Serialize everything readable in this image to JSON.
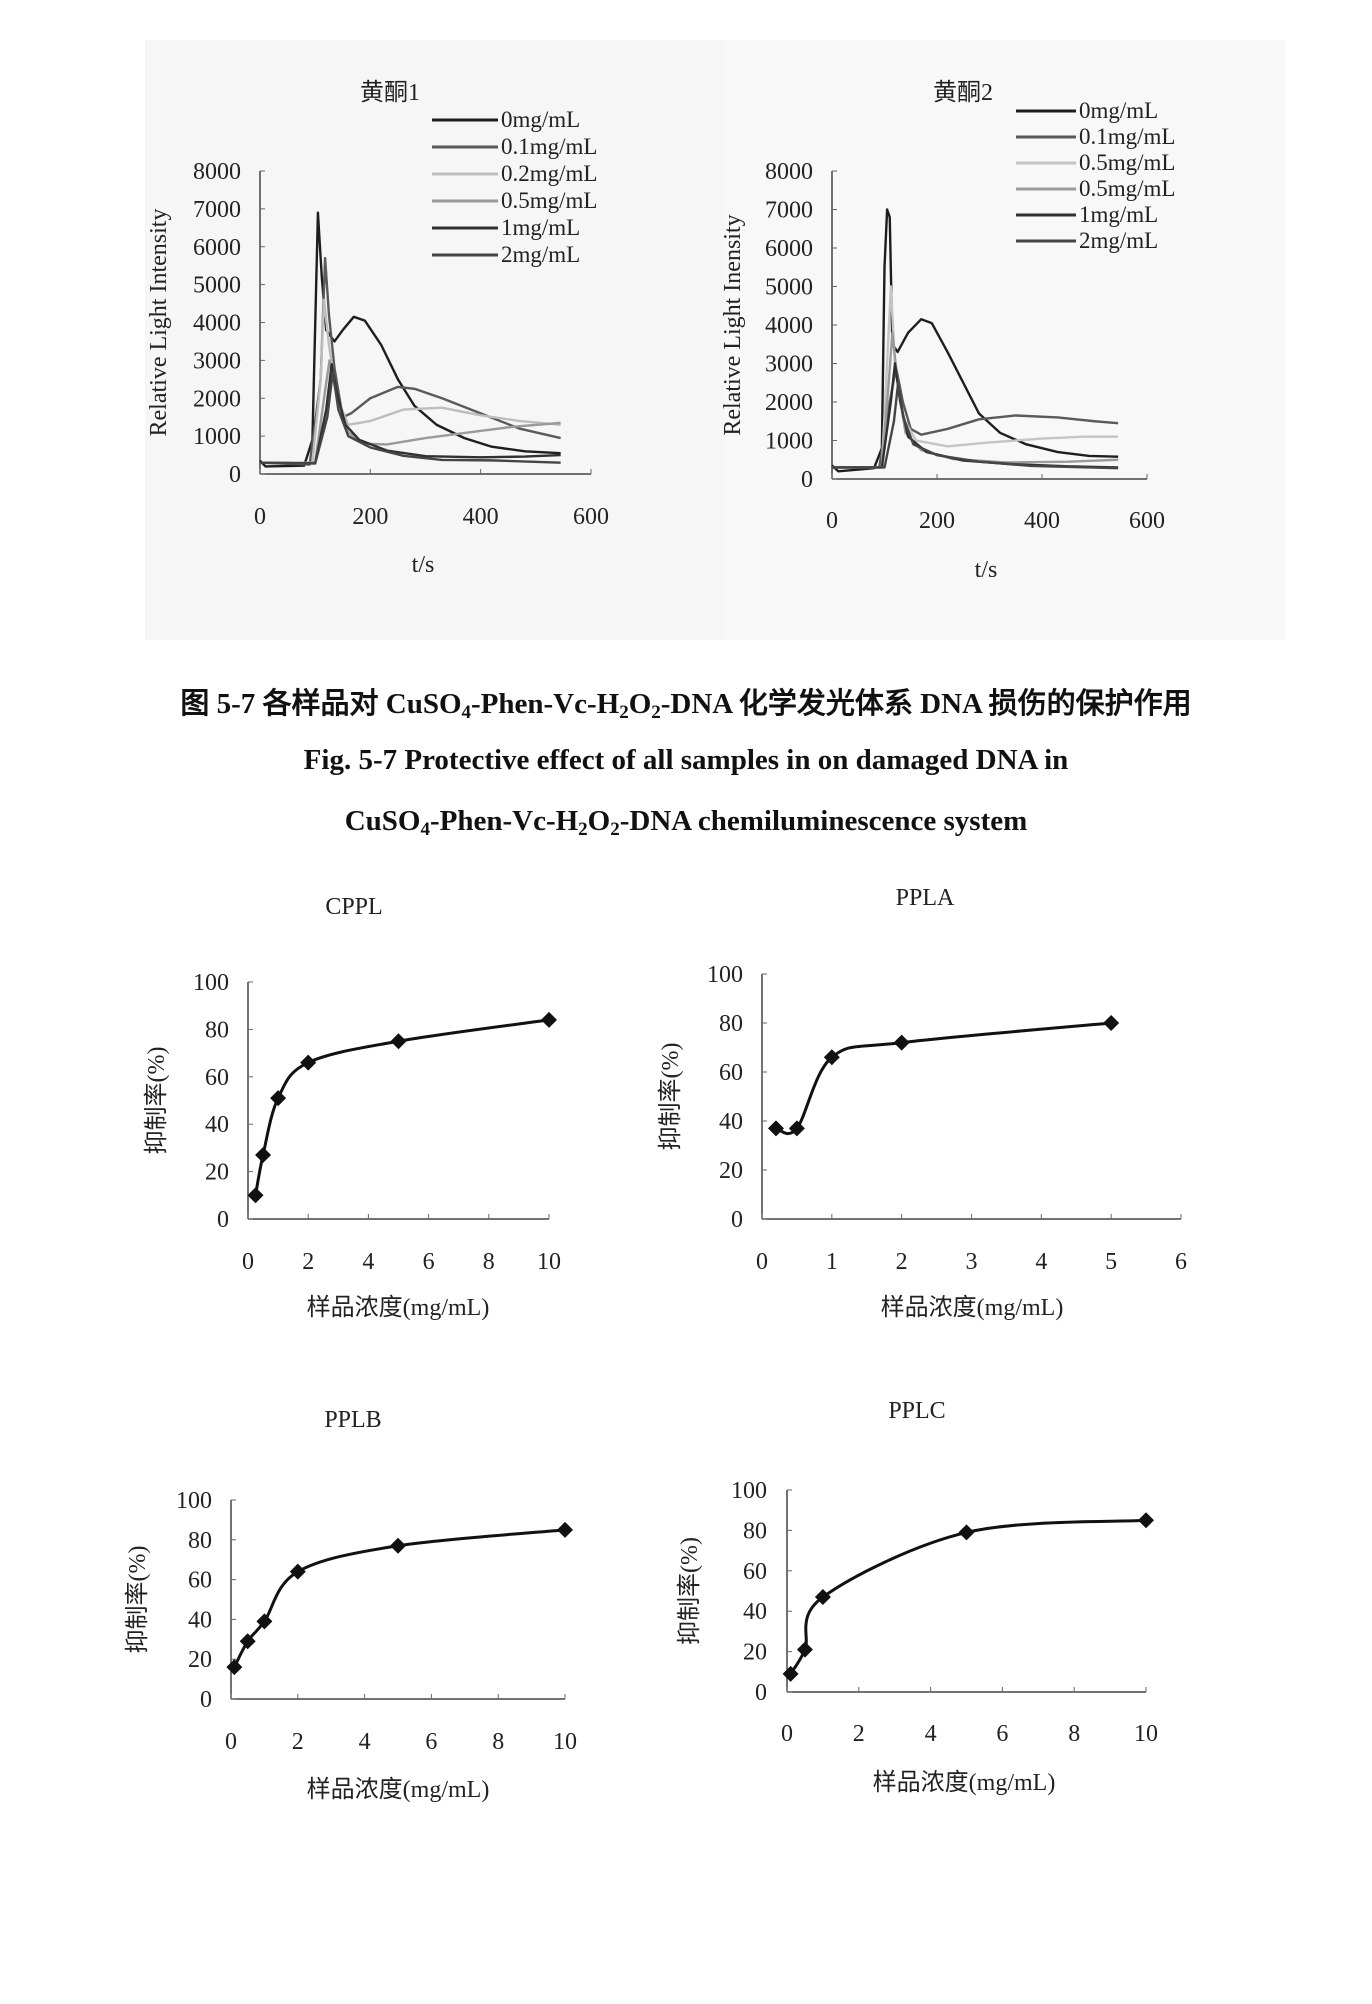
{
  "caption": {
    "line1": [
      "图 5-7   各样品对 CuSO",
      "4",
      "-Phen-Vc-H",
      "2",
      "O",
      "2",
      "-DNA 化学发光体系 DNA 损伤的保护作用"
    ],
    "line2": "Fig. 5-7 Protective effect of all samples in on damaged DNA in",
    "line3": [
      "CuSO",
      "4",
      "-Phen-Vc-H",
      "2",
      "O",
      "2",
      "-DNA chemiluminescence system"
    ]
  },
  "chart_data": [
    {
      "type": "line",
      "title": "黄酮1",
      "xlabel": "t/s",
      "ylabel": "Relative Light Intensity",
      "xlim": [
        0,
        600
      ],
      "ylim": [
        0,
        8000
      ],
      "xticks": [
        0,
        200,
        400,
        600
      ],
      "yticks": [
        0,
        1000,
        2000,
        3000,
        4000,
        5000,
        6000,
        7000,
        8000
      ],
      "legend": "top-right",
      "series": [
        {
          "name": "0mg/mL",
          "color": "#1e1e1e",
          "points": [
            [
              0,
              350
            ],
            [
              10,
              200
            ],
            [
              80,
              220
            ],
            [
              95,
              900
            ],
            [
              105,
              6900
            ],
            [
              112,
              5200
            ],
            [
              120,
              3800
            ],
            [
              135,
              3500
            ],
            [
              150,
              3800
            ],
            [
              170,
              4150
            ],
            [
              190,
              4050
            ],
            [
              220,
              3400
            ],
            [
              250,
              2500
            ],
            [
              280,
              1800
            ],
            [
              320,
              1300
            ],
            [
              370,
              950
            ],
            [
              420,
              720
            ],
            [
              480,
              600
            ],
            [
              545,
              550
            ]
          ]
        },
        {
          "name": "0.1mg/mL",
          "color": "#5a5a5a",
          "points": [
            [
              0,
              300
            ],
            [
              90,
              250
            ],
            [
              110,
              2500
            ],
            [
              118,
              5700
            ],
            [
              125,
              4200
            ],
            [
              135,
              2800
            ],
            [
              150,
              1500
            ],
            [
              165,
              1600
            ],
            [
              200,
              2000
            ],
            [
              250,
              2300
            ],
            [
              280,
              2250
            ],
            [
              330,
              2000
            ],
            [
              400,
              1600
            ],
            [
              470,
              1200
            ],
            [
              545,
              950
            ]
          ]
        },
        {
          "name": "0.2mg/mL",
          "color": "#bdbdbd",
          "points": [
            [
              0,
              300
            ],
            [
              95,
              300
            ],
            [
              110,
              2500
            ],
            [
              116,
              4600
            ],
            [
              125,
              3400
            ],
            [
              140,
              2000
            ],
            [
              160,
              1300
            ],
            [
              200,
              1400
            ],
            [
              260,
              1700
            ],
            [
              330,
              1750
            ],
            [
              400,
              1550
            ],
            [
              470,
              1400
            ],
            [
              545,
              1300
            ]
          ]
        },
        {
          "name": "0.5mg/mL",
          "color": "#9a9a9a",
          "points": [
            [
              0,
              300
            ],
            [
              100,
              300
            ],
            [
              118,
              2200
            ],
            [
              126,
              3000
            ],
            [
              140,
              2000
            ],
            [
              160,
              1100
            ],
            [
              190,
              800
            ],
            [
              230,
              780
            ],
            [
              300,
              950
            ],
            [
              380,
              1100
            ],
            [
              460,
              1250
            ],
            [
              545,
              1350
            ]
          ]
        },
        {
          "name": "1mg/mL",
          "color": "#303030",
          "points": [
            [
              0,
              300
            ],
            [
              100,
              280
            ],
            [
              120,
              1700
            ],
            [
              130,
              2900
            ],
            [
              140,
              2100
            ],
            [
              155,
              1300
            ],
            [
              180,
              900
            ],
            [
              230,
              620
            ],
            [
              300,
              470
            ],
            [
              400,
              440
            ],
            [
              480,
              460
            ],
            [
              545,
              500
            ]
          ]
        },
        {
          "name": "2mg/mL",
          "color": "#454545",
          "points": [
            [
              0,
              300
            ],
            [
              100,
              280
            ],
            [
              122,
              1500
            ],
            [
              132,
              2700
            ],
            [
              142,
              1700
            ],
            [
              160,
              1000
            ],
            [
              200,
              700
            ],
            [
              260,
              480
            ],
            [
              330,
              370
            ],
            [
              420,
              360
            ],
            [
              545,
              300
            ]
          ]
        }
      ]
    },
    {
      "type": "line",
      "title": "黄酮2",
      "xlabel": "t/s",
      "ylabel": "Relative Light Inensity",
      "xlim": [
        0,
        600
      ],
      "ylim": [
        0,
        8000
      ],
      "xticks": [
        0,
        200,
        400,
        600
      ],
      "yticks": [
        0,
        1000,
        2000,
        3000,
        4000,
        5000,
        6000,
        7000,
        8000
      ],
      "legend": "top-right",
      "series": [
        {
          "name": "0mg/mL",
          "color": "#1e1e1e",
          "points": [
            [
              0,
              350
            ],
            [
              12,
              200
            ],
            [
              80,
              280
            ],
            [
              95,
              800
            ],
            [
              100,
              5500
            ],
            [
              105,
              7000
            ],
            [
              110,
              6800
            ],
            [
              115,
              3500
            ],
            [
              125,
              3300
            ],
            [
              145,
              3800
            ],
            [
              170,
              4150
            ],
            [
              190,
              4050
            ],
            [
              220,
              3300
            ],
            [
              250,
              2500
            ],
            [
              280,
              1700
            ],
            [
              320,
              1200
            ],
            [
              370,
              900
            ],
            [
              430,
              700
            ],
            [
              490,
              600
            ],
            [
              545,
              580
            ]
          ]
        },
        {
          "name": "0.1mg/mL",
          "color": "#5a5a5a",
          "points": [
            [
              0,
              300
            ],
            [
              90,
              300
            ],
            [
              110,
              2000
            ],
            [
              122,
              2900
            ],
            [
              135,
              2000
            ],
            [
              150,
              1300
            ],
            [
              170,
              1150
            ],
            [
              220,
              1300
            ],
            [
              280,
              1550
            ],
            [
              350,
              1650
            ],
            [
              430,
              1600
            ],
            [
              500,
              1500
            ],
            [
              545,
              1450
            ]
          ]
        },
        {
          "name": "0.5mg/mL",
          "color": "#c4c4c4",
          "points": [
            [
              0,
              300
            ],
            [
              95,
              300
            ],
            [
              105,
              3000
            ],
            [
              112,
              5000
            ],
            [
              120,
              3000
            ],
            [
              135,
              1600
            ],
            [
              160,
              1000
            ],
            [
              220,
              850
            ],
            [
              300,
              950
            ],
            [
              400,
              1050
            ],
            [
              480,
              1100
            ],
            [
              545,
              1100
            ]
          ]
        },
        {
          "name": "0.5mg/mL",
          "color": "#9a9a9a",
          "points": [
            [
              0,
              300
            ],
            [
              95,
              300
            ],
            [
              108,
              2500
            ],
            [
              115,
              3800
            ],
            [
              125,
              2500
            ],
            [
              140,
              1200
            ],
            [
              170,
              750
            ],
            [
              230,
              520
            ],
            [
              330,
              430
            ],
            [
              450,
              450
            ],
            [
              545,
              500
            ]
          ]
        },
        {
          "name": "1mg/mL",
          "color": "#303030",
          "points": [
            [
              0,
              300
            ],
            [
              95,
              300
            ],
            [
              112,
              2000
            ],
            [
              120,
              3000
            ],
            [
              130,
              2000
            ],
            [
              145,
              1100
            ],
            [
              180,
              700
            ],
            [
              250,
              480
            ],
            [
              350,
              380
            ],
            [
              450,
              330
            ],
            [
              545,
              300
            ]
          ]
        },
        {
          "name": "2mg/mL",
          "color": "#454545",
          "points": [
            [
              0,
              300
            ],
            [
              100,
              300
            ],
            [
              118,
              1500
            ],
            [
              126,
              2500
            ],
            [
              136,
              1600
            ],
            [
              155,
              900
            ],
            [
              200,
              620
            ],
            [
              280,
              450
            ],
            [
              380,
              340
            ],
            [
              545,
              280
            ]
          ]
        }
      ]
    },
    {
      "type": "line",
      "title": "CPPL",
      "xlabel": "样品浓度(mg/mL)",
      "ylabel": "抑制率(%)",
      "xlim": [
        0,
        10
      ],
      "ylim": [
        0,
        100
      ],
      "xticks": [
        0,
        2,
        4,
        6,
        8,
        10
      ],
      "yticks": [
        0,
        20,
        40,
        60,
        80,
        100
      ],
      "x": [
        0.25,
        0.5,
        1,
        2,
        5,
        10
      ],
      "values": [
        10,
        27,
        51,
        66,
        75,
        84
      ]
    },
    {
      "type": "line",
      "title": "PPLA",
      "xlabel": "样品浓度(mg/mL)",
      "ylabel": "抑制率(%)",
      "xlim": [
        0,
        6
      ],
      "ylim": [
        0,
        100
      ],
      "xticks": [
        0,
        1,
        2,
        3,
        4,
        5,
        6
      ],
      "yticks": [
        0,
        20,
        40,
        60,
        80,
        100
      ],
      "x": [
        0.2,
        0.5,
        1,
        2,
        5
      ],
      "values": [
        37,
        37,
        66,
        72,
        80
      ]
    },
    {
      "type": "line",
      "title": "PPLB",
      "xlabel": "样品浓度(mg/mL)",
      "ylabel": "抑制率(%)",
      "xlim": [
        0,
        10
      ],
      "ylim": [
        0,
        100
      ],
      "xticks": [
        0,
        2,
        4,
        6,
        8,
        10
      ],
      "yticks": [
        0,
        20,
        40,
        60,
        80,
        100
      ],
      "x": [
        0.1,
        0.5,
        1,
        2,
        5,
        10
      ],
      "values": [
        16,
        29,
        39,
        64,
        77,
        85
      ]
    },
    {
      "type": "line",
      "title": "PPLC",
      "xlabel": "样品浓度(mg/mL)",
      "ylabel": "抑制率(%)",
      "xlim": [
        0,
        10
      ],
      "ylim": [
        0,
        100
      ],
      "xticks": [
        0,
        2,
        4,
        6,
        8,
        10
      ],
      "yticks": [
        0,
        20,
        40,
        60,
        80,
        100
      ],
      "x": [
        0.1,
        0.5,
        1,
        5,
        10
      ],
      "values": [
        9,
        21,
        47,
        79,
        85
      ]
    }
  ]
}
